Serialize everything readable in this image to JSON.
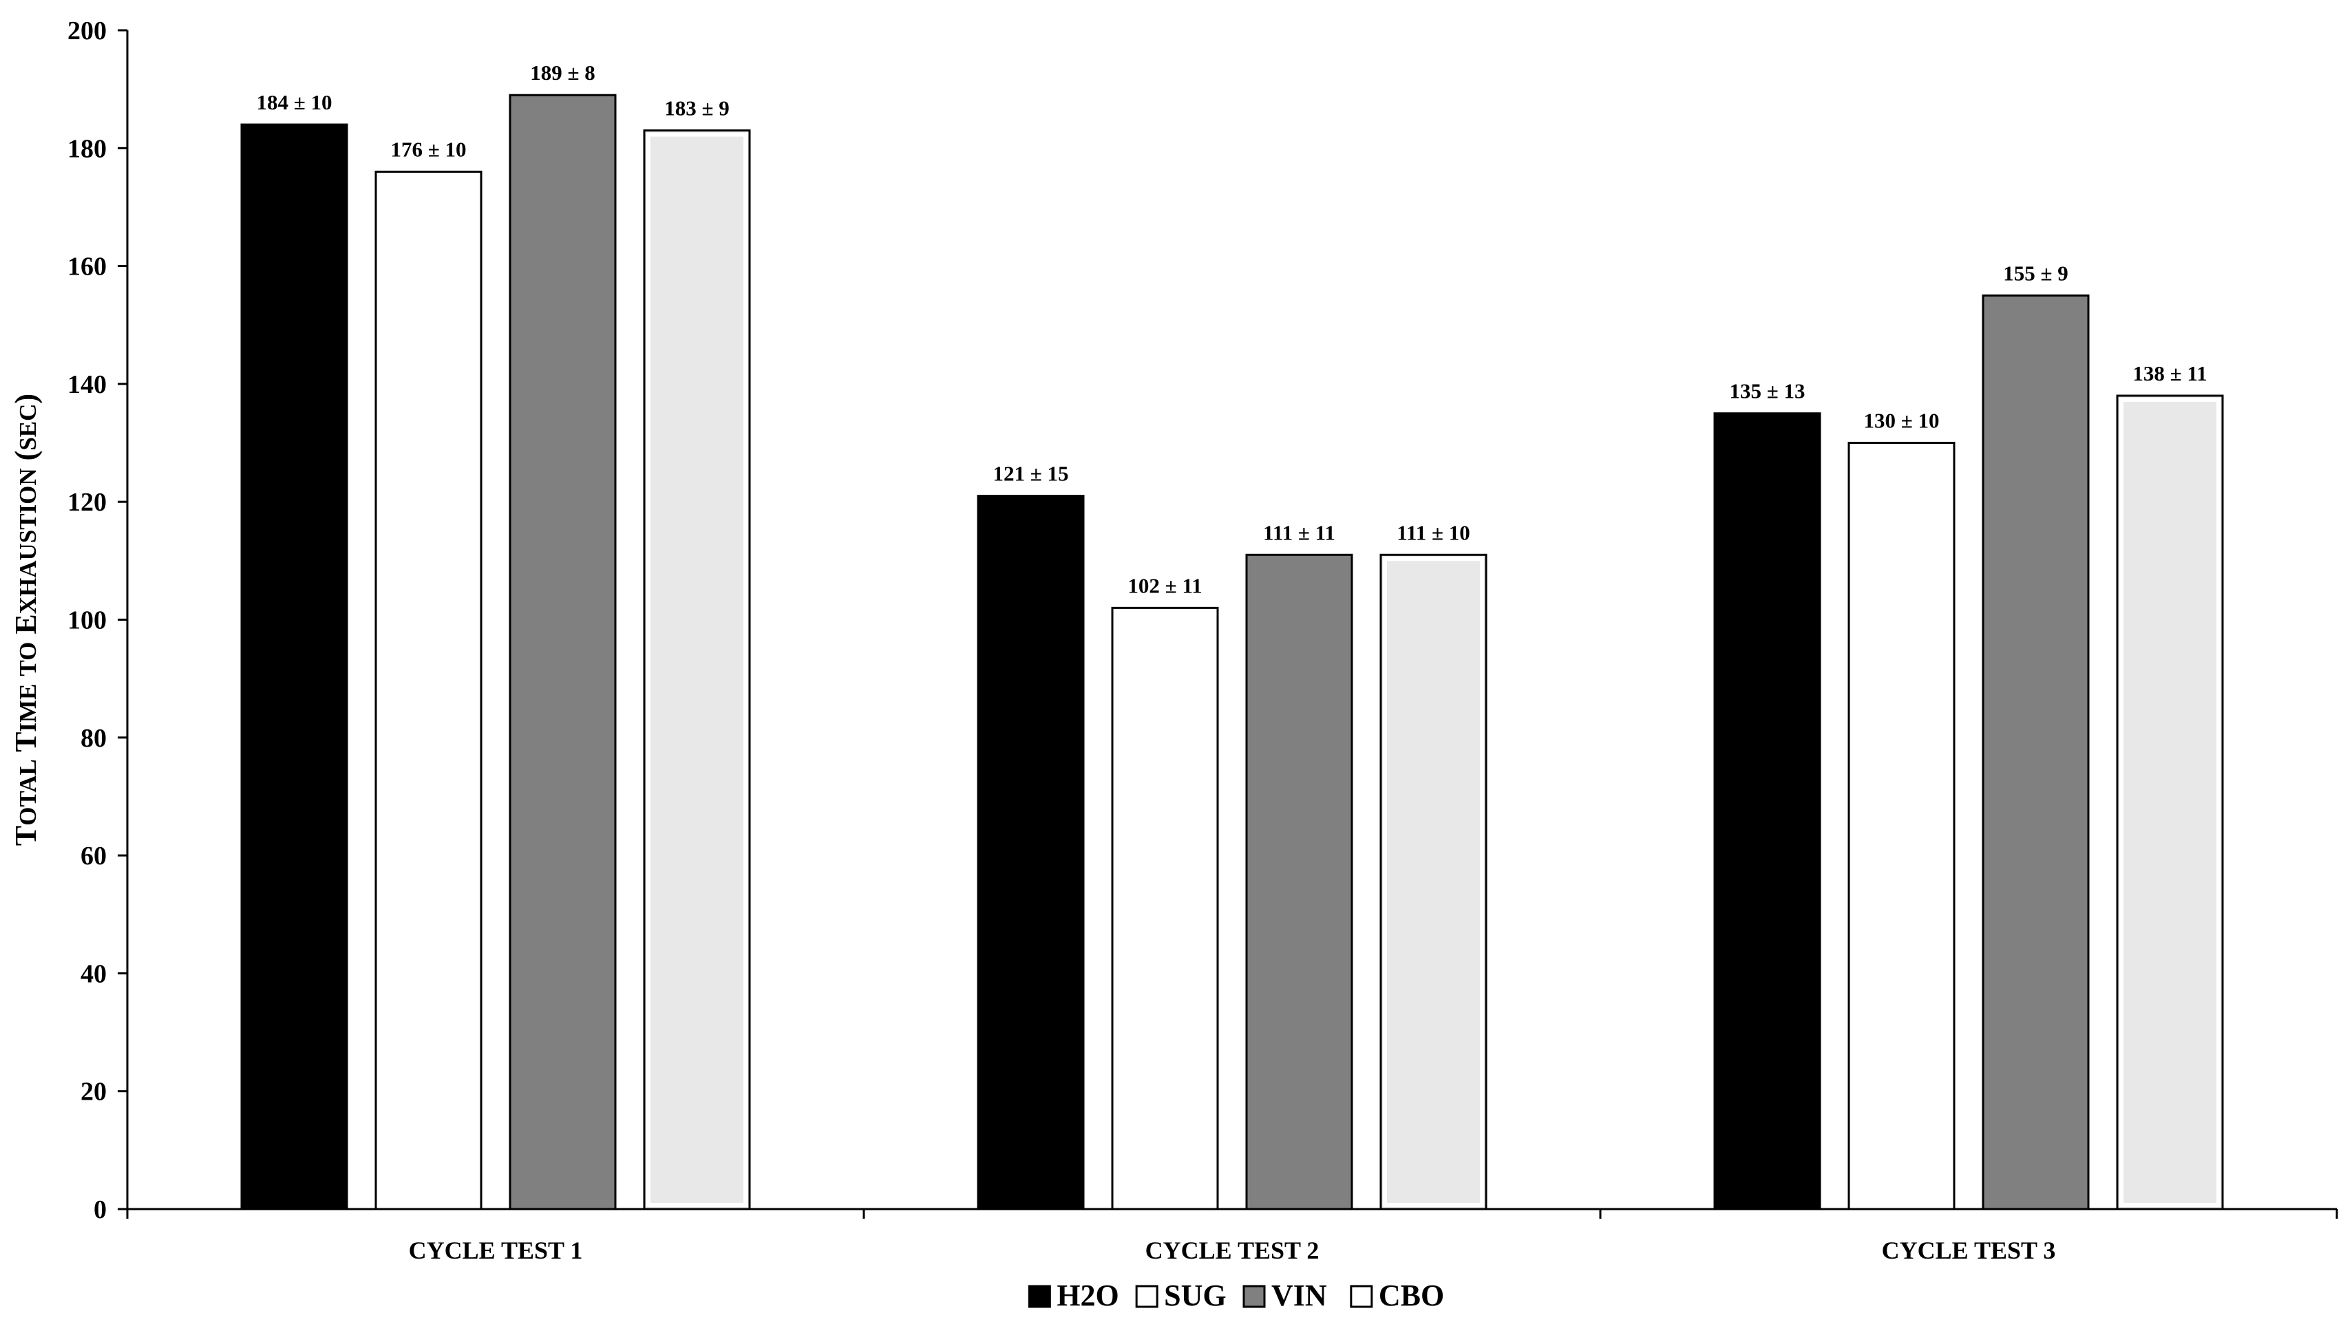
{
  "chart_data": {
    "type": "bar",
    "title": "",
    "xlabel": "",
    "ylabel": "Total Time to Exhaustion (sec)",
    "ylim": [
      0,
      200
    ],
    "yticks": [
      0,
      20,
      40,
      60,
      80,
      100,
      120,
      140,
      160,
      180,
      200
    ],
    "grid": false,
    "legend_position": "bottom-center",
    "categories": [
      "CYCLE TEST 1",
      "CYCLE TEST 2",
      "CYCLE TEST 3"
    ],
    "series": [
      {
        "name": "H2O",
        "color": "#000000",
        "values": [
          184,
          121,
          135
        ],
        "errors": [
          10,
          15,
          13
        ],
        "labels": [
          "184 ± 10",
          "121 ± 15",
          "135 ± 13"
        ]
      },
      {
        "name": "SUG",
        "color": "#ffffff",
        "values": [
          176,
          102,
          130
        ],
        "errors": [
          10,
          11,
          10
        ],
        "labels": [
          "176 ± 10",
          "102 ± 11",
          "130 ± 10"
        ]
      },
      {
        "name": "VIN",
        "color": "#808080",
        "values": [
          189,
          111,
          155
        ],
        "errors": [
          8,
          11,
          9
        ],
        "labels": [
          "189 ± 8",
          "111 ± 11",
          "155 ± 9"
        ]
      },
      {
        "name": "CBO",
        "color": "#e8e8e8",
        "legend_color": "#ffffff",
        "values": [
          183,
          111,
          138
        ],
        "errors": [
          9,
          10,
          11
        ],
        "labels": [
          "183 ± 9",
          "111 ± 10",
          "138 ± 11"
        ]
      }
    ]
  }
}
